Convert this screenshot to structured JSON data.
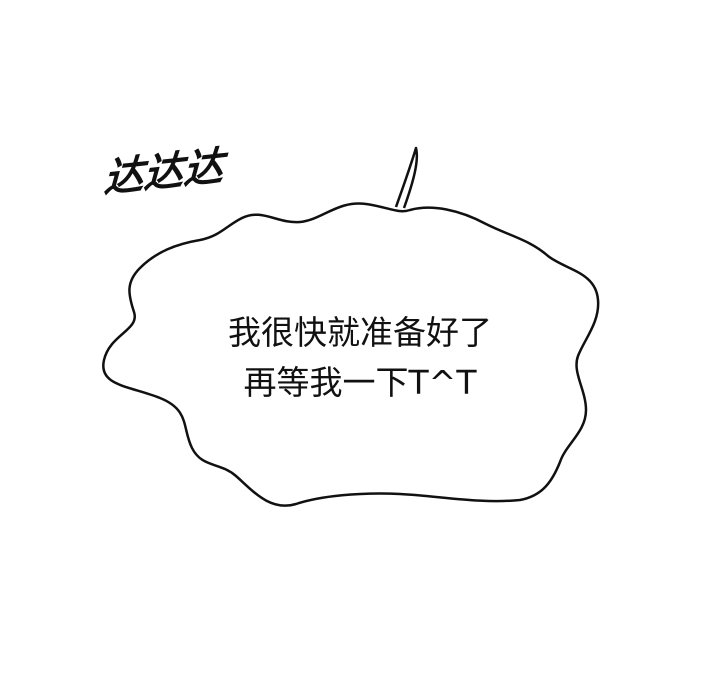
{
  "sound_effect": "达达达",
  "speech_bubble": {
    "lines": [
      "我很快就准备好了",
      "再等我一下T^T"
    ]
  },
  "colors": {
    "background": "#ffffff",
    "ink": "#111111"
  }
}
